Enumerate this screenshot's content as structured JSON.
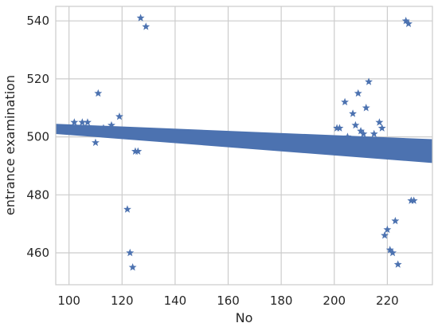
{
  "chart_data": {
    "type": "scatter",
    "xlabel": "No",
    "ylabel": "entrance examination",
    "xlim": [
      95,
      237
    ],
    "ylim": [
      449,
      545
    ],
    "xticks": [
      100,
      120,
      140,
      160,
      180,
      200,
      220
    ],
    "yticks": [
      460,
      480,
      500,
      520,
      540
    ],
    "grid": true,
    "marker": "star",
    "color": "#4c72b0",
    "series": [
      {
        "points": [
          [
            102,
            505
          ],
          [
            105,
            505
          ],
          [
            107,
            505
          ],
          [
            110,
            498
          ],
          [
            111,
            515
          ],
          [
            113,
            503
          ],
          [
            116,
            504
          ],
          [
            119,
            507
          ],
          [
            122,
            475
          ],
          [
            123,
            460
          ],
          [
            124,
            455
          ],
          [
            125,
            495
          ],
          [
            126,
            495
          ],
          [
            127,
            541
          ],
          [
            129,
            538
          ],
          [
            201,
            503
          ],
          [
            202,
            503
          ],
          [
            204,
            512
          ],
          [
            205,
            500
          ],
          [
            207,
            508
          ],
          [
            208,
            504
          ],
          [
            209,
            515
          ],
          [
            210,
            502
          ],
          [
            211,
            501
          ],
          [
            212,
            510
          ],
          [
            213,
            519
          ],
          [
            215,
            501
          ],
          [
            217,
            505
          ],
          [
            218,
            503
          ],
          [
            219,
            466
          ],
          [
            220,
            468
          ],
          [
            221,
            461
          ],
          [
            222,
            460
          ],
          [
            223,
            471
          ],
          [
            224,
            456
          ],
          [
            227,
            540
          ],
          [
            228,
            539
          ],
          [
            229,
            478
          ],
          [
            230,
            478
          ]
        ]
      }
    ],
    "confidence_band": {
      "x": [
        95,
        237
      ],
      "upper": [
        504.5,
        499.2
      ],
      "lower": [
        501.0,
        491.0
      ]
    }
  }
}
